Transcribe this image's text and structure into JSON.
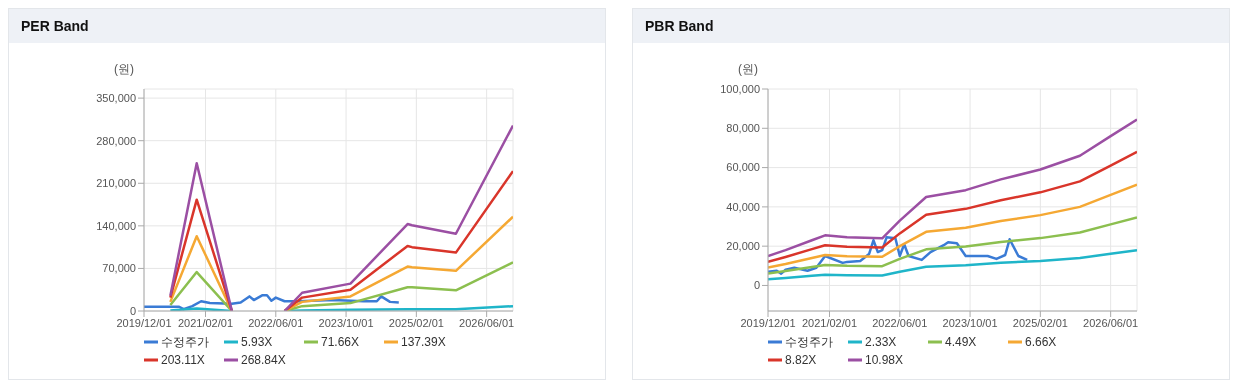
{
  "chart_data": [
    {
      "type": "line",
      "title": "PER Band",
      "ylabel": "(원)",
      "xlim": [
        "2019-12",
        "2026-12"
      ],
      "ylim": [
        0,
        365000
      ],
      "xticks": [
        {
          "value": "2019-12-01",
          "label": "2019/12/01"
        },
        {
          "value": "2021-02-01",
          "label": "2021/02/01"
        },
        {
          "value": "2022-06-01",
          "label": "2022/06/01"
        },
        {
          "value": "2023-10-01",
          "label": "2023/10/01"
        },
        {
          "value": "2025-02-01",
          "label": "2025/02/01"
        },
        {
          "value": "2026-06-01",
          "label": "2026/06/01"
        }
      ],
      "yticks": [
        0,
        {
          "value": 70000,
          "label": "70,000"
        },
        {
          "value": 140000,
          "label": "140,000"
        },
        {
          "value": 210000,
          "label": "210,000"
        },
        {
          "value": 280000,
          "label": "280,000"
        },
        {
          "value": 350000,
          "label": "350,000"
        }
      ],
      "grid": true,
      "legend": "bottom",
      "marker": "none",
      "line_style": "solid",
      "x": [
        "2020-06",
        "2020-12",
        "2021-08",
        "2022-02",
        "2022-08",
        "2022-12",
        "2023-11",
        "2024-12",
        "2025-01",
        "2025-11",
        "2026-12"
      ],
      "series": [
        {
          "name": "수정주가",
          "color": "#3a7bd5",
          "x": [
            "2019-12",
            "2020-08",
            "2020-09",
            "2020-11",
            "2021-01",
            "2021-03",
            "2021-08",
            "2021-10",
            "2021-12",
            "2022-01",
            "2022-03",
            "2022-04",
            "2022-05",
            "2022-06",
            "2022-08",
            "2022-11",
            "2023-07",
            "2024-02",
            "2024-05",
            "2024-06",
            "2024-08",
            "2024-10"
          ],
          "values": [
            7000,
            7000,
            3000,
            8000,
            16000,
            13000,
            12000,
            14000,
            24000,
            18000,
            26000,
            26000,
            17000,
            22000,
            16000,
            16000,
            18000,
            16000,
            16000,
            24000,
            15000,
            14000
          ]
        },
        {
          "name": "5.93X",
          "color": "#1fb5c9",
          "values": [
            1000,
            4000,
            0,
            null,
            0,
            1000,
            2000,
            3000,
            3000,
            3000,
            8000
          ]
        },
        {
          "name": "71.66X",
          "color": "#8cbf4f",
          "values": [
            10000,
            64000,
            0,
            null,
            0,
            8000,
            13000,
            39000,
            39000,
            34000,
            80000
          ]
        },
        {
          "name": "137.39X",
          "color": "#f5a833",
          "values": [
            15000,
            123000,
            0,
            null,
            0,
            15000,
            24000,
            73000,
            72000,
            66000,
            155000
          ]
        },
        {
          "name": "203.11X",
          "color": "#d9352a",
          "values": [
            22000,
            183000,
            0,
            null,
            0,
            22000,
            35000,
            107000,
            105000,
            96000,
            230000
          ]
        },
        {
          "name": "268.84X",
          "color": "#9b4fa3",
          "values": [
            25000,
            243000,
            0,
            null,
            0,
            30000,
            45000,
            143000,
            141000,
            127000,
            305000
          ]
        }
      ]
    },
    {
      "type": "line",
      "title": "PBR Band",
      "ylabel": "(원)",
      "xlim": [
        "2019-12",
        "2026-12"
      ],
      "ylim": [
        -13000,
        100000
      ],
      "xticks": [
        {
          "value": "2019-12-01",
          "label": "2019/12/01"
        },
        {
          "value": "2021-02-01",
          "label": "2021/02/01"
        },
        {
          "value": "2022-06-01",
          "label": "2022/06/01"
        },
        {
          "value": "2023-10-01",
          "label": "2023/10/01"
        },
        {
          "value": "2025-02-01",
          "label": "2025/02/01"
        },
        {
          "value": "2026-06-01",
          "label": "2026/06/01"
        }
      ],
      "yticks": [
        0,
        {
          "value": 20000,
          "label": "20,000"
        },
        {
          "value": 40000,
          "label": "40,000"
        },
        {
          "value": 60000,
          "label": "60,000"
        },
        {
          "value": 80000,
          "label": "80,000"
        },
        {
          "value": 100000,
          "label": "100,000"
        }
      ],
      "grid": true,
      "legend": "bottom",
      "marker": "none",
      "line_style": "solid",
      "x": [
        "2019-12",
        "2020-04",
        "2020-10",
        "2021-01",
        "2021-06",
        "2022-02",
        "2022-06",
        "2022-12",
        "2023-09",
        "2024-05",
        "2025-02",
        "2025-11",
        "2026-06",
        "2026-12"
      ],
      "series": [
        {
          "name": "수정주가",
          "color": "#3a7bd5",
          "x": [
            "2019-12",
            "2020-02",
            "2020-03",
            "2020-04",
            "2020-06",
            "2020-09",
            "2020-11",
            "2021-01",
            "2021-05",
            "2021-06",
            "2021-09",
            "2021-11",
            "2021-12",
            "2022-01",
            "2022-02",
            "2022-03",
            "2022-05",
            "2022-06",
            "2022-07",
            "2022-08",
            "2022-11",
            "2023-01",
            "2023-04",
            "2023-05",
            "2023-07",
            "2023-09",
            "2024-02",
            "2024-04",
            "2024-06",
            "2024-07",
            "2024-09",
            "2024-11"
          ],
          "values": [
            7000,
            7500,
            6000,
            8000,
            9000,
            7500,
            9000,
            15000,
            11500,
            12000,
            12500,
            16000,
            23000,
            17000,
            18000,
            24500,
            24000,
            15000,
            21000,
            15000,
            13000,
            17000,
            20500,
            22000,
            21500,
            15000,
            15000,
            13500,
            15500,
            23500,
            15000,
            13000
          ]
        },
        {
          "name": "2.33X",
          "color": "#1fb5c9",
          "values": [
            3200,
            3800,
            4900,
            5400,
            5200,
            5100,
            7000,
            9500,
            10300,
            11500,
            12500,
            14000,
            16100,
            17900
          ]
        },
        {
          "name": "4.49X",
          "color": "#8cbf4f",
          "values": [
            6100,
            7400,
            9400,
            10400,
            10000,
            9800,
            13500,
            18400,
            19800,
            22100,
            24100,
            27000,
            31100,
            34600
          ]
        },
        {
          "name": "6.66X",
          "color": "#f5a833",
          "values": [
            9100,
            10900,
            14000,
            15500,
            14900,
            14600,
            20000,
            27300,
            29400,
            32800,
            35800,
            40000,
            46100,
            51300
          ]
        },
        {
          "name": "8.82X",
          "color": "#d9352a",
          "values": [
            12000,
            14500,
            18500,
            20500,
            19700,
            19300,
            26500,
            36000,
            39000,
            43400,
            47400,
            53000,
            61000,
            68000
          ]
        },
        {
          "name": "10.98X",
          "color": "#9b4fa3",
          "values": [
            15000,
            18000,
            23000,
            25500,
            24500,
            24000,
            33000,
            45000,
            48500,
            54000,
            59000,
            66000,
            76000,
            84500
          ]
        }
      ]
    }
  ]
}
